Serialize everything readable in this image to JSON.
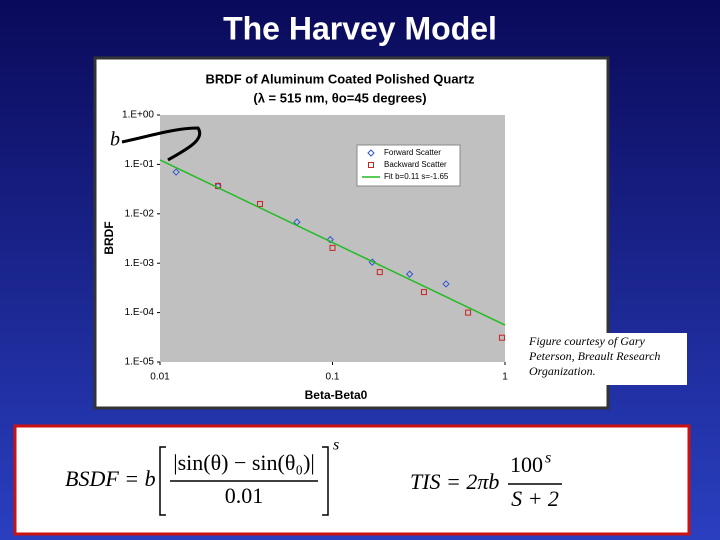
{
  "slide_title": "The Harvey Model",
  "chart_data": {
    "type": "scatter",
    "title": "BRDF of Aluminum Coated Polished Quartz",
    "subtitle": "(λ = 515 nm, θo=45 degrees)",
    "x_label": "Beta-Beta0",
    "y_label": "BRDF",
    "annotation": "b",
    "log_x": true,
    "log_y": true,
    "xlim": [
      0.01,
      1
    ],
    "ylim": [
      1e-05,
      1
    ],
    "xticks": [
      0.01,
      0.1,
      1
    ],
    "yticks": [
      {
        "value": 1,
        "label": "1.E+00"
      },
      {
        "value": 0.1,
        "label": "1.E-01"
      },
      {
        "value": 0.01,
        "label": "1.E-02"
      },
      {
        "value": 0.001,
        "label": "1.E-03"
      },
      {
        "value": 0.0001,
        "label": "1.E-04"
      },
      {
        "value": 1e-05,
        "label": "1.E-05"
      }
    ],
    "series": [
      {
        "name": "Forward Scatter",
        "color": "#3355cc",
        "marker": "diamond",
        "x": [
          0.0124,
          0.0217,
          0.0622,
          0.097,
          0.17,
          0.28,
          0.455
        ],
        "values": [
          0.07,
          0.0366,
          0.0068,
          0.003,
          0.00105,
          0.0006,
          0.00038
        ]
      },
      {
        "name": "Backward Scatter",
        "color": "#cc2222",
        "marker": "square",
        "x": [
          0.0217,
          0.038,
          0.1,
          0.188,
          0.339,
          0.611,
          0.96
        ],
        "values": [
          0.0366,
          0.0158,
          0.00204,
          0.00066,
          0.00026,
          0.0001,
          3.1e-05
        ]
      },
      {
        "name": "Fit b=0.11 s=-1.65",
        "color": "#22bb22",
        "marker": "line",
        "x": [
          0.01,
          1
        ],
        "values": [
          0.123,
          5.6e-05
        ]
      }
    ]
  },
  "caption": "Figure courtesy of Gary Peterson, Breault Research Organization.",
  "formulas": {
    "bsdf": {
      "lhs": "BSDF = b",
      "numerator": "|sin(θ) − sin(θ₀)|",
      "denominator": "0.01",
      "exponent": "s"
    },
    "tis": {
      "lhs": "TIS = 2πb",
      "numerator": "100",
      "numerator_exponent": "s",
      "denominator": "S + 2"
    }
  }
}
